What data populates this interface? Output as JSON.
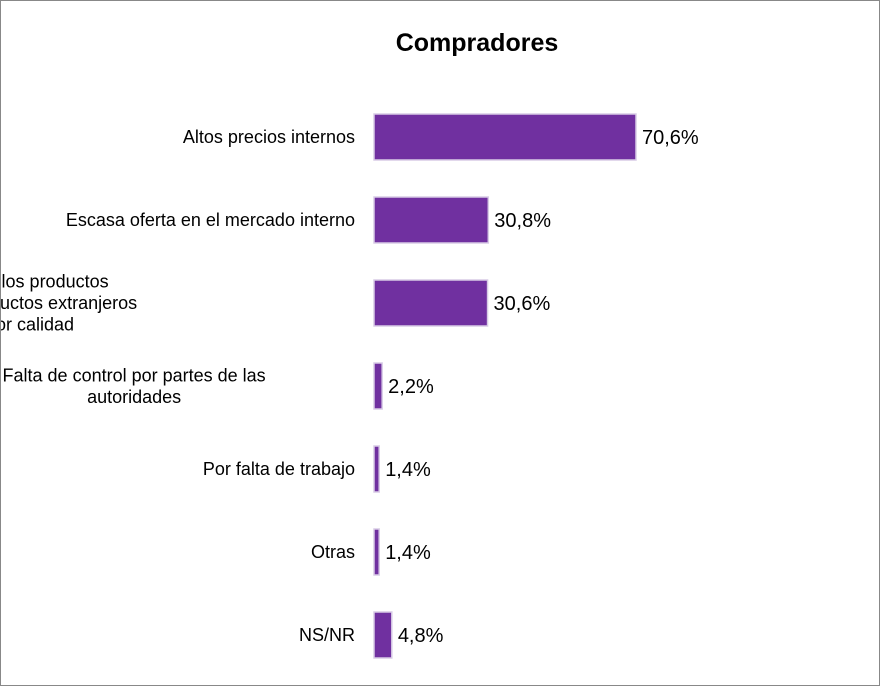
{
  "chart_data": {
    "type": "bar",
    "orientation": "horizontal",
    "title": "Compradores",
    "categories": [
      "Altos precios internos",
      "Escasa oferta en el mercado interno",
      "Baja calidad de los productos nacionales/los productos extranjeros son de mejor calidad",
      "Falta de control por partes de las autoridades",
      "Por falta de trabajo",
      "Otras",
      "NS/NR"
    ],
    "category_lines": [
      [
        "Altos precios internos"
      ],
      [
        "Escasa oferta en el mercado interno"
      ],
      [
        "Baja calidad de los productos",
        "nacionales/los productos extranjeros",
        "son de mejor calidad"
      ],
      [
        "Falta de control por partes de las",
        "autoridades"
      ],
      [
        "Por falta de trabajo"
      ],
      [
        "Otras"
      ],
      [
        "NS/NR"
      ]
    ],
    "values": [
      70.6,
      30.8,
      30.6,
      2.2,
      1.4,
      1.4,
      4.8
    ],
    "data_labels": [
      "70,6%",
      "30,8%",
      "30,6%",
      "2,2%",
      "1,4%",
      "1,4%",
      "4,8%"
    ],
    "unit": "%",
    "xlim": [
      0,
      100
    ],
    "grid": false,
    "legend": false,
    "colors": {
      "bar_fill": "#7030A0",
      "bar_stroke": "#D8CCE6",
      "text": "#000000",
      "border": "#888888"
    }
  }
}
